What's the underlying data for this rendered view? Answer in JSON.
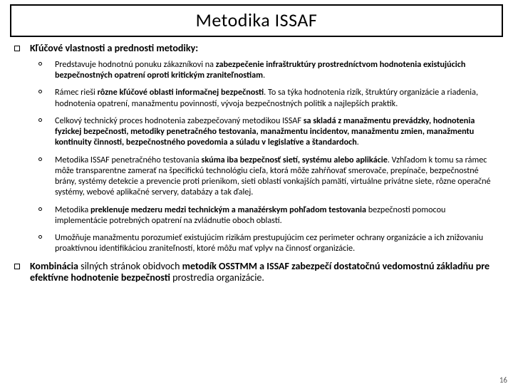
{
  "title": "Metodika ISSAF",
  "section_heading": "Kľúčové vlastnosti a prednosti metodiky:",
  "items": [
    {
      "pre": "Predstavuje hodnotnú ponuku zákazníkovi na ",
      "bold": "zabezpečenie infraštruktúry prostredníctvom hodnotenia existujúcich bezpečnostných opatrení oproti kritickým zraniteľnostiam",
      "post": "."
    },
    {
      "pre": "Rámec rieši ",
      "bold": "rôzne kľúčové oblasti informačnej bezpečnosti",
      "post": ". To sa týka hodnotenia rizík, štruktúry organizácie a riadenia, hodnotenia opatrení, manažmentu povinností, vývoja bezpečnostných politík a najlepších praktík."
    },
    {
      "pre": "Celkový technický proces hodnotenia zabezpečovaný metodikou ISSAF ",
      "bold": "sa skladá z manažmentu prevádzky, hodnotenia fyzickej bezpečnosti, metodiky penetračného testovania, manažmentu incidentov, manažmentu zmien, manažmentu kontinuity činnosti, bezpečnostného povedomia a súladu v legislatíve a štandardoch",
      "post": "."
    },
    {
      "pre": "Metodika ISSAF penetračného testovania ",
      "bold": "skúma iba bezpečnosť sietí, systému alebo aplikácie",
      "post": ". Vzhľadom k tomu sa rámec môže transparentne zamerať na špecifickú technológiu cieľa, ktorá môže zahŕňovať smerovače, prepínače, bezpečnostné brány, systémy detekcie a prevencie proti prienikom, sieti oblastí vonkajších pamätí, virtuálne privátne siete, rôzne operačné systémy, webové aplikačné servery, databázy a tak ďalej."
    },
    {
      "pre": "Metodika ",
      "bold": "preklenuje medzeru medzi technickým a manažérskym pohľadom testovania",
      "post": " bezpečnosti pomocou implementácie potrebných opatrení na zvládnutie oboch oblastí."
    },
    {
      "pre": "Umožňuje manažmentu porozumieť existujúcim rizikám prestupujúcim cez perimeter ochrany organizácie a ich znižovaniu proaktívnou identifikáciou zraniteľností, ktoré môžu mať vplyv na činnosť organizácie.",
      "bold": "",
      "post": ""
    }
  ],
  "closing": {
    "p1": "Kombinácia",
    "p2": " silných stránok obidvoch ",
    "p3": "metodík OSSTMM a ISSAF zabezpečí dostatočnú vedomostnú základňu pre efektívne hodnotenie bezpečnosti",
    "p4": " prostredia organizácie."
  },
  "page_number": "16",
  "colors": {
    "border": "#000000",
    "text": "#000000",
    "pagenum": "#595959",
    "bg": "#ffffff"
  }
}
